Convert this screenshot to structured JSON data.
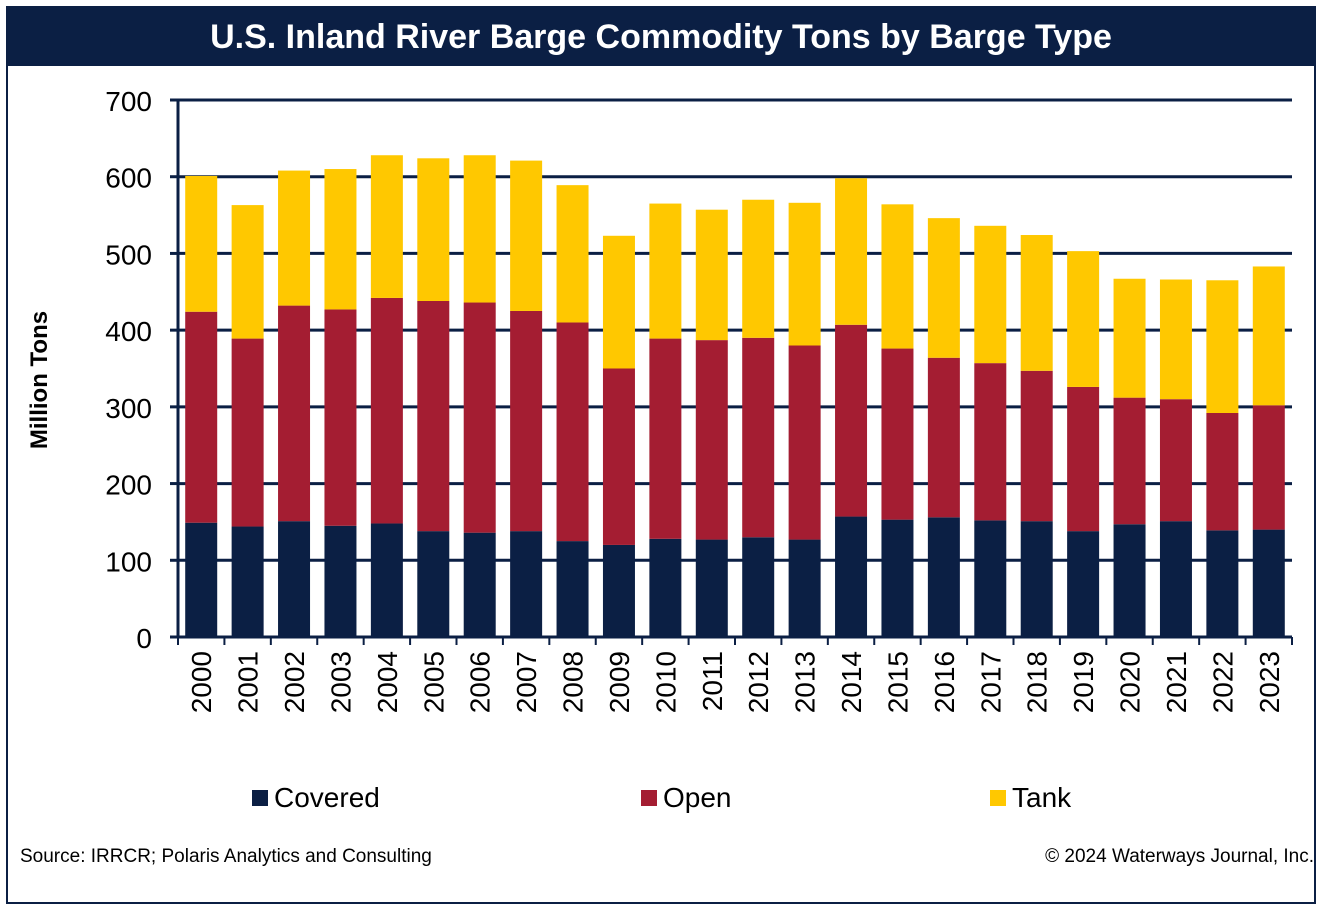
{
  "title": "U.S. Inland River Barge Commodity Tons by Barge Type",
  "source": "Source: IRRCR; Polaris Analytics and Consulting",
  "copyright": "© 2024 Waterways Journal, Inc.",
  "chart_data": {
    "type": "bar",
    "stacked": true,
    "ylabel": "Million Tons",
    "xlabel": "",
    "ylim": [
      0,
      700
    ],
    "yticks": [
      0,
      100,
      200,
      300,
      400,
      500,
      600,
      700
    ],
    "grid": true,
    "legend_position": "bottom",
    "categories": [
      "2000",
      "2001",
      "2002",
      "2003",
      "2004",
      "2005",
      "2006",
      "2007",
      "2008",
      "2009",
      "2010",
      "2011",
      "2012",
      "2013",
      "2014",
      "2015",
      "2016",
      "2017",
      "2018",
      "2019",
      "2020",
      "2021",
      "2022",
      "2023"
    ],
    "series": [
      {
        "name": "Covered",
        "color": "#0b1f44",
        "values": [
          149,
          144,
          151,
          145,
          148,
          138,
          136,
          138,
          125,
          120,
          128,
          127,
          130,
          127,
          157,
          153,
          156,
          152,
          151,
          138,
          147,
          151,
          139,
          140
        ]
      },
      {
        "name": "Open",
        "color": "#a41d32",
        "values": [
          275,
          245,
          281,
          282,
          294,
          300,
          300,
          287,
          285,
          230,
          261,
          260,
          260,
          253,
          250,
          223,
          208,
          205,
          196,
          188,
          165,
          159,
          153,
          162
        ]
      },
      {
        "name": "Tank",
        "color": "#ffc800",
        "values": [
          177,
          174,
          176,
          183,
          186,
          186,
          192,
          196,
          179,
          173,
          176,
          170,
          180,
          186,
          191,
          188,
          182,
          179,
          177,
          177,
          155,
          156,
          173,
          181
        ]
      }
    ]
  }
}
